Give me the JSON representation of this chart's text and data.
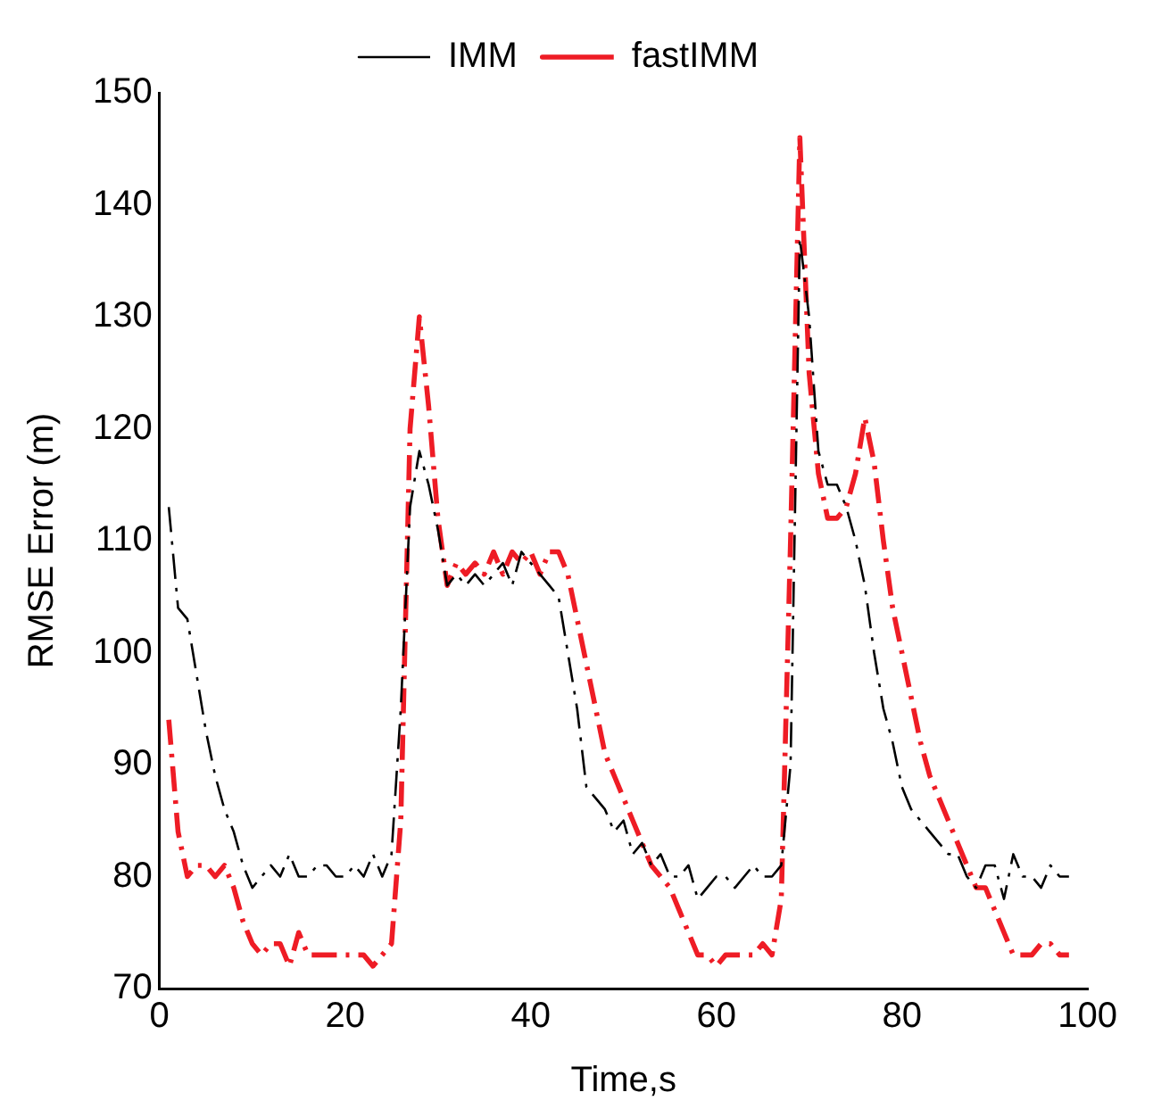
{
  "chart_data": {
    "type": "line",
    "xlabel": "Time,s",
    "ylabel": "RMSE Error (m)",
    "x": [
      1,
      2,
      3,
      4,
      5,
      6,
      7,
      8,
      9,
      10,
      11,
      12,
      13,
      14,
      15,
      16,
      17,
      18,
      19,
      20,
      21,
      22,
      23,
      24,
      25,
      26,
      27,
      28,
      29,
      30,
      31,
      32,
      33,
      34,
      35,
      36,
      37,
      38,
      39,
      40,
      41,
      42,
      43,
      44,
      45,
      46,
      47,
      48,
      49,
      50,
      51,
      52,
      53,
      54,
      55,
      56,
      57,
      58,
      59,
      60,
      61,
      62,
      63,
      64,
      65,
      66,
      67,
      68,
      69,
      70,
      71,
      72,
      73,
      74,
      75,
      76,
      77,
      78,
      79,
      80,
      81,
      82,
      83,
      84,
      85,
      86,
      87,
      88,
      89,
      90,
      91,
      92,
      93,
      94,
      95,
      96,
      97,
      98
    ],
    "series": [
      {
        "name": "IMM",
        "color": "#000000",
        "line_style": "dashed",
        "values": [
          113,
          104,
          103,
          98,
          93,
          89,
          86,
          84,
          81,
          79,
          80,
          81,
          80,
          82,
          80,
          80,
          81,
          81,
          80,
          80,
          81,
          80,
          82,
          80,
          82,
          95,
          113,
          118,
          115,
          111,
          106,
          107,
          106,
          107,
          106,
          107,
          108,
          106,
          109,
          108,
          107,
          106,
          105,
          100,
          95,
          88,
          87,
          86,
          84,
          85,
          82,
          83,
          81,
          82,
          80,
          80,
          81,
          78,
          79,
          80,
          80,
          79,
          80,
          81,
          80,
          80,
          81,
          90,
          137,
          130,
          118,
          115,
          115,
          113,
          110,
          106,
          100,
          95,
          92,
          88,
          86,
          85,
          84,
          83,
          82,
          82,
          80,
          79,
          81,
          81,
          78,
          82,
          80,
          80,
          79,
          81,
          80,
          80
        ]
      },
      {
        "name": "fastIMM",
        "color": "#ee1c25",
        "line_style": "dashed",
        "values": [
          94,
          84,
          80,
          81,
          81,
          80,
          81,
          79,
          76,
          74,
          73,
          74,
          74,
          72,
          75,
          73,
          73,
          73,
          73,
          73,
          73,
          73,
          72,
          73,
          74,
          85,
          120,
          130,
          122,
          112,
          106,
          108,
          107,
          108,
          107,
          109,
          107,
          109,
          108,
          109,
          107,
          109,
          109,
          107,
          103,
          99,
          95,
          91,
          89,
          87,
          85,
          83,
          81,
          80,
          79,
          77,
          75,
          73,
          73,
          72,
          73,
          73,
          73,
          73,
          74,
          73,
          78,
          110,
          146,
          125,
          116,
          112,
          112,
          113,
          116,
          121,
          117,
          110,
          104,
          100,
          96,
          92,
          89,
          87,
          85,
          83,
          81,
          79,
          79,
          77,
          75,
          73,
          73,
          73,
          74,
          74,
          73,
          73
        ]
      }
    ],
    "xlim": [
      0,
      100
    ],
    "xticks": [
      0,
      20,
      40,
      60,
      80,
      100
    ],
    "ylim": [
      70,
      150
    ],
    "yticks": [
      70,
      80,
      90,
      100,
      110,
      120,
      130,
      140,
      150
    ],
    "grid": false,
    "legend": "top",
    "marker": "none"
  }
}
